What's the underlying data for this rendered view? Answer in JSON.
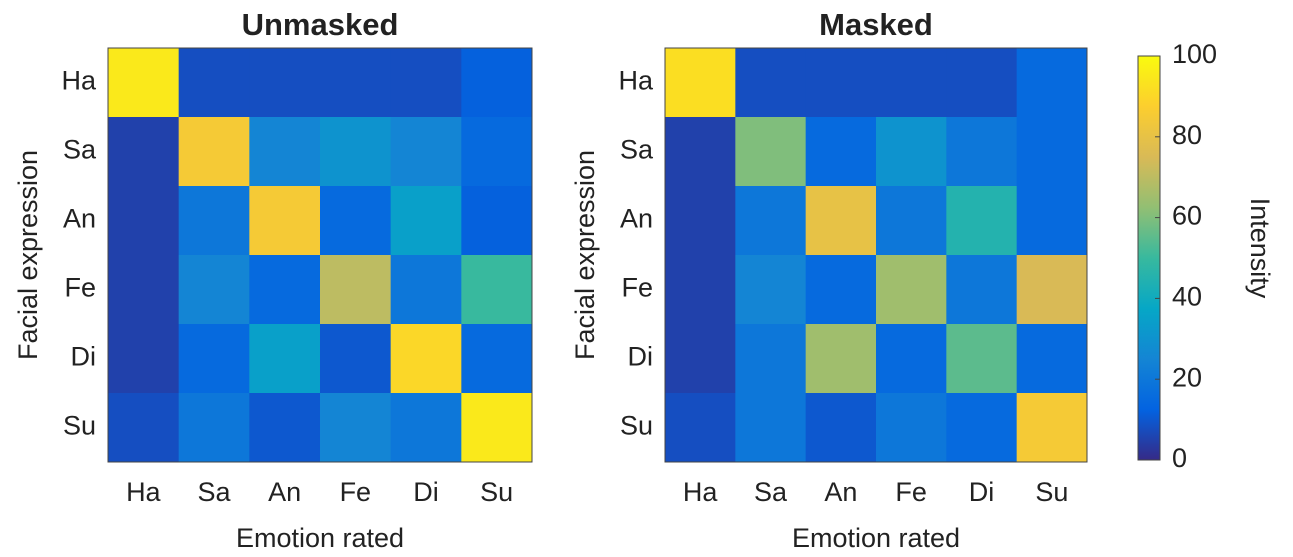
{
  "chart_data": [
    {
      "type": "heatmap",
      "title": "Unmasked",
      "xlabel": "Emotion rated",
      "ylabel": "Facial expression",
      "x": [
        "Ha",
        "Sa",
        "An",
        "Fe",
        "Di",
        "Su"
      ],
      "y": [
        "Ha",
        "Sa",
        "An",
        "Fe",
        "Di",
        "Su"
      ],
      "values": [
        [
          95,
          8,
          8,
          8,
          8,
          12
        ],
        [
          5,
          85,
          25,
          30,
          25,
          15
        ],
        [
          5,
          20,
          85,
          15,
          35,
          12
        ],
        [
          5,
          25,
          15,
          70,
          20,
          50
        ],
        [
          5,
          15,
          35,
          10,
          90,
          15
        ],
        [
          8,
          20,
          10,
          25,
          20,
          95
        ]
      ],
      "zlim": [
        0,
        100
      ],
      "colormap": [
        "#352a87",
        "#0363e1",
        "#1485d4",
        "#06a7c6",
        "#38b99e",
        "#92bf73",
        "#d9ba56",
        "#fcce2e",
        "#f9fb0e"
      ]
    },
    {
      "type": "heatmap",
      "title": "Masked",
      "xlabel": "Emotion rated",
      "ylabel": "Facial expression",
      "x": [
        "Ha",
        "Sa",
        "An",
        "Fe",
        "Di",
        "Su"
      ],
      "y": [
        "Ha",
        "Sa",
        "An",
        "Fe",
        "Di",
        "Su"
      ],
      "values": [
        [
          92,
          8,
          8,
          8,
          8,
          15
        ],
        [
          5,
          60,
          15,
          30,
          20,
          15
        ],
        [
          5,
          20,
          80,
          20,
          45,
          15
        ],
        [
          5,
          25,
          15,
          65,
          20,
          75
        ],
        [
          5,
          20,
          65,
          15,
          55,
          15
        ],
        [
          8,
          20,
          10,
          20,
          15,
          85
        ]
      ],
      "zlim": [
        0,
        100
      ],
      "colormap": [
        "#352a87",
        "#0363e1",
        "#1485d4",
        "#06a7c6",
        "#38b99e",
        "#92bf73",
        "#d9ba56",
        "#fcce2e",
        "#f9fb0e"
      ],
      "colorbar": {
        "label": "Intensity",
        "ticks": [
          0,
          20,
          40,
          60,
          80,
          100
        ]
      }
    }
  ]
}
